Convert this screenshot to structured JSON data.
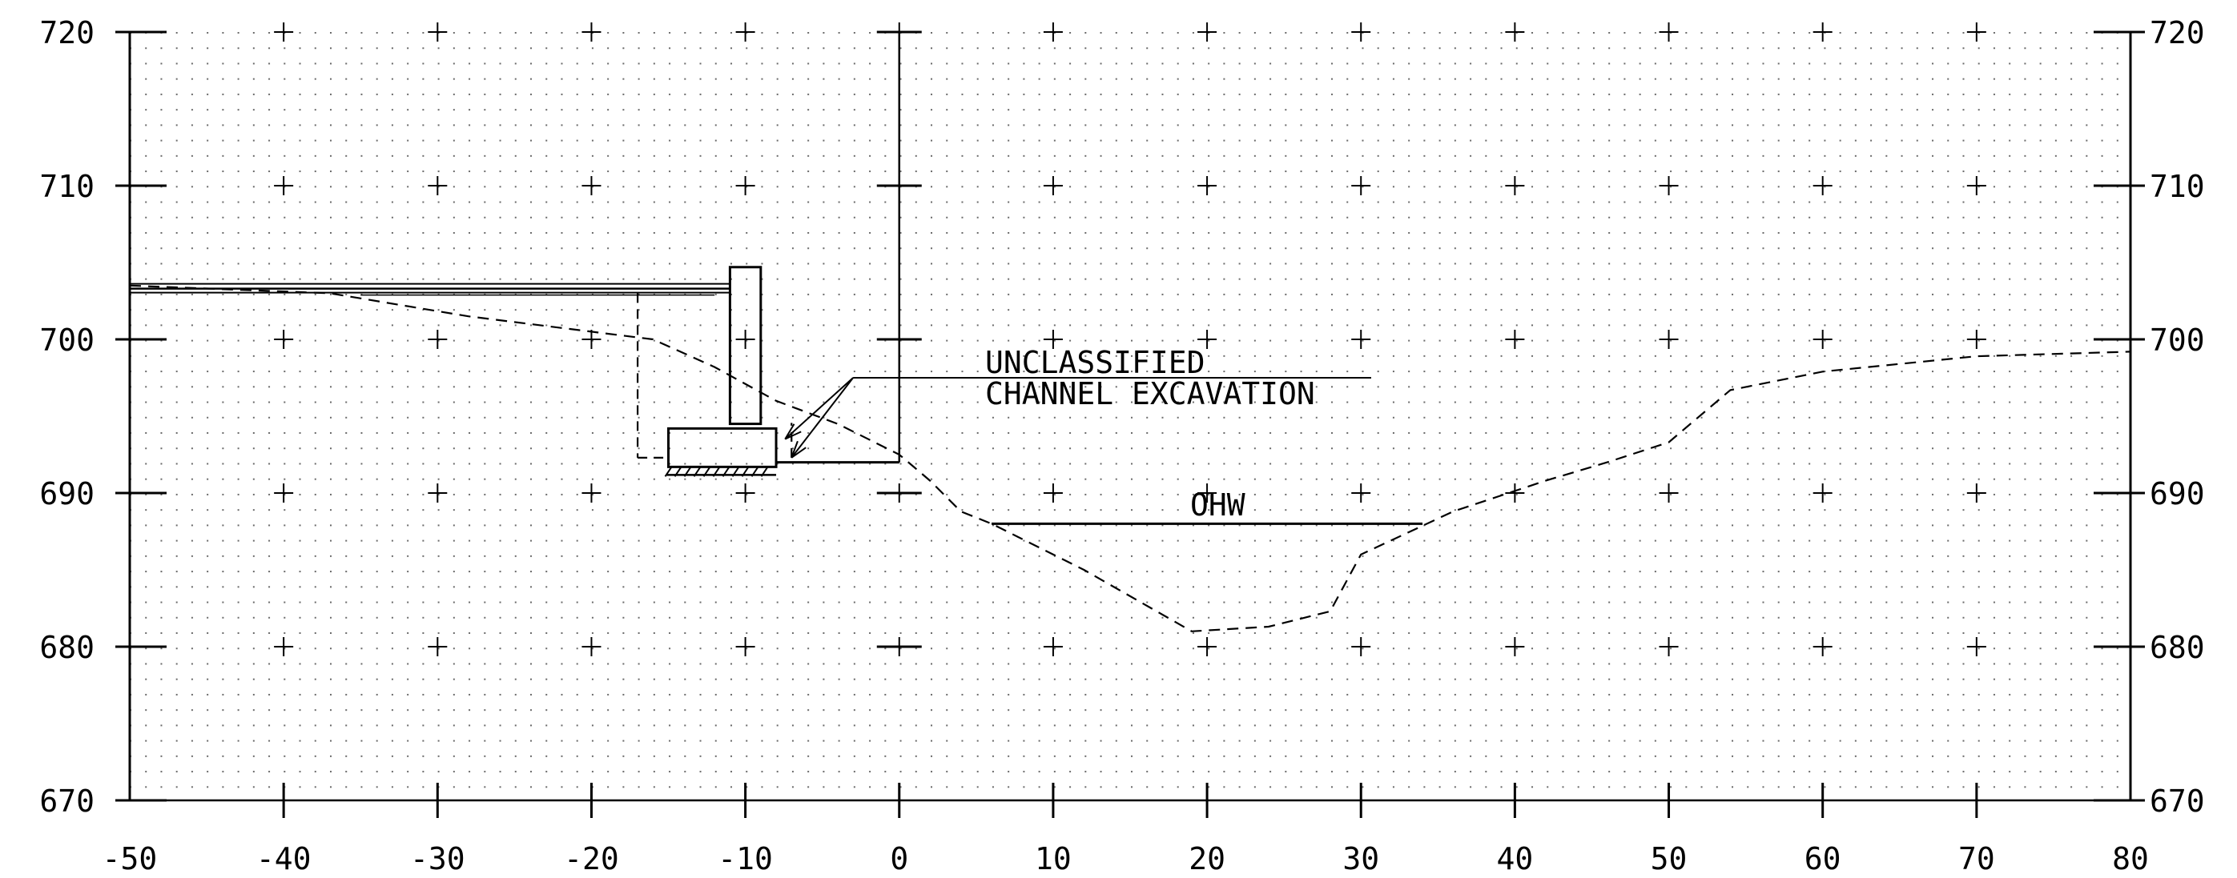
{
  "chart_data": {
    "type": "diagram",
    "title": "",
    "xlim": [
      -50,
      80
    ],
    "ylim": [
      670,
      720
    ],
    "x_ticks": [
      -50,
      -40,
      -30,
      -20,
      -10,
      0,
      10,
      20,
      30,
      40,
      50,
      60,
      70,
      80
    ],
    "x_tick_labels": [
      "-50",
      "-40",
      "-30",
      "-20",
      "-10",
      "0",
      "10",
      "20",
      "30",
      "40",
      "50",
      "60",
      "70",
      "80"
    ],
    "y_ticks": [
      670,
      680,
      690,
      700,
      710,
      720
    ],
    "y_tick_labels": [
      "670",
      "680",
      "690",
      "700",
      "710",
      "720"
    ],
    "grid": "dot grid with cross marks at 10 x 10 intervals",
    "existing_ground": [
      [
        -50,
        703.5
      ],
      [
        -37,
        703.0
      ],
      [
        -28,
        701.5
      ],
      [
        -20,
        700.5
      ],
      [
        -16,
        700.0
      ],
      [
        -12,
        698.2
      ],
      [
        -8,
        696.0
      ],
      [
        -4,
        694.5
      ],
      [
        0,
        692.5
      ],
      [
        2,
        690.8
      ],
      [
        4,
        688.8
      ],
      [
        6,
        688.0
      ],
      [
        12,
        685.0
      ],
      [
        19,
        681.0
      ],
      [
        24,
        681.3
      ],
      [
        28,
        682.3
      ],
      [
        30,
        686.0
      ],
      [
        36,
        688.8
      ],
      [
        42,
        690.8
      ],
      [
        46,
        692.0
      ],
      [
        50,
        693.3
      ],
      [
        54,
        696.7
      ],
      [
        60,
        697.9
      ],
      [
        66,
        698.5
      ],
      [
        70,
        698.9
      ],
      [
        80,
        699.2
      ]
    ],
    "structures": {
      "retaining_wall": {
        "stem": {
          "x": [
            -11,
            -9
          ],
          "y_top": 704.7,
          "y_bottom": 694.5
        },
        "footing": {
          "x": [
            -15,
            -8
          ],
          "y_top": 694.2,
          "y_bottom": 691.7
        }
      },
      "excavation_limit": {
        "left": {
          "x": -17,
          "y": [
            692.3,
            703.0
          ]
        },
        "right": {
          "x": -7,
          "y": [
            692.3,
            693.0
          ]
        },
        "bottom_elevation": 692.3
      },
      "proposed_grade": {
        "x": [
          -50,
          -11
        ],
        "elevation": 703.3
      },
      "bench": {
        "x": [
          -15,
          0
        ],
        "elevation": 692.0
      }
    },
    "annotations": [
      {
        "lines": [
          "UNCLASSIFIED",
          "CHANNEL EXCAVATION"
        ],
        "anchor": [
          -3,
          697.5
        ],
        "leaders_to": [
          [
            -7,
            693.3
          ],
          [
            -7,
            692.3
          ]
        ]
      },
      {
        "text": "OHW",
        "elevation": 688.0,
        "x_range": [
          6,
          34
        ]
      }
    ]
  },
  "labels": {
    "excavation_line1": "UNCLASSIFIED",
    "excavation_line2": "CHANNEL EXCAVATION",
    "ohw": "OHW"
  }
}
